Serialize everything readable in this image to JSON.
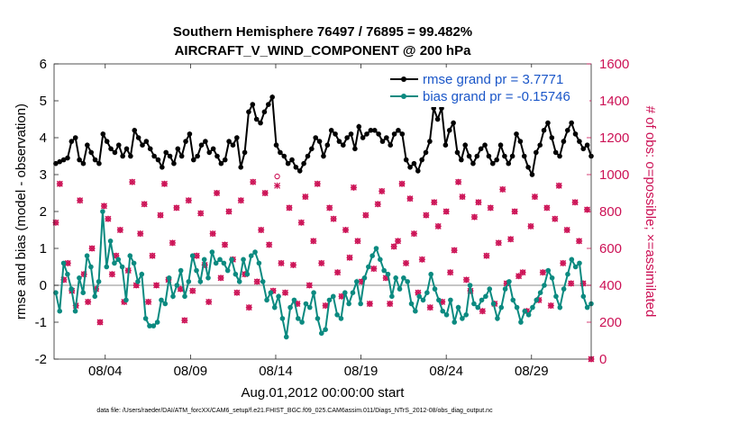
{
  "chart_data": {
    "type": "line",
    "title": "Southern Hemisphere 76497 / 76895 = 99.482%",
    "subtitle": "AIRCRAFT_V_WIND_COMPONENT @ 200 hPa",
    "xlabel": "Aug.01,2012 00:00:00 start",
    "ylabel": "rmse and bias (model - observation)",
    "ylabel_right": "# of obs: o=possible; ×=assimilated",
    "xlim": [
      0,
      31.5
    ],
    "ylim": [
      -2,
      6
    ],
    "ylim_right": [
      0,
      1600
    ],
    "grid": false,
    "legend_position": "top-right",
    "x_ticks": [
      {
        "x": 3,
        "label": "08/04"
      },
      {
        "x": 8,
        "label": "08/09"
      },
      {
        "x": 13,
        "label": "08/14"
      },
      {
        "x": 18,
        "label": "08/19"
      },
      {
        "x": 23,
        "label": "08/24"
      },
      {
        "x": 28,
        "label": "08/29"
      }
    ],
    "y_ticks": [
      -2,
      -1,
      0,
      1,
      2,
      3,
      4,
      5,
      6
    ],
    "y_ticks_right": [
      0,
      200,
      400,
      600,
      800,
      1000,
      1200,
      1400,
      1600
    ],
    "series": [
      {
        "name": "rmse grand pr = 3.7771",
        "color": "#000000",
        "axis": "left",
        "marker": "circle",
        "values": [
          3.3,
          3.35,
          3.4,
          3.45,
          3.9,
          4.0,
          3.4,
          3.3,
          3.8,
          3.6,
          3.4,
          3.3,
          4.1,
          3.9,
          3.7,
          3.6,
          3.8,
          3.5,
          3.7,
          3.5,
          4.2,
          4.0,
          3.8,
          3.9,
          3.7,
          3.5,
          3.4,
          3.2,
          3.6,
          3.5,
          3.3,
          3.7,
          3.5,
          3.9,
          4.1,
          3.4,
          3.5,
          3.8,
          3.9,
          3.6,
          3.7,
          3.5,
          3.3,
          3.4,
          3.9,
          3.8,
          4.0,
          3.2,
          3.6,
          4.7,
          4.9,
          4.5,
          4.4,
          4.7,
          4.9,
          5.1,
          3.8,
          3.6,
          3.5,
          3.3,
          3.4,
          3.2,
          3.1,
          3.3,
          3.5,
          3.7,
          4.0,
          3.9,
          3.5,
          3.8,
          4.2,
          4.1,
          3.9,
          3.8,
          4.0,
          4.1,
          3.7,
          4.3,
          4.0,
          4.1,
          4.2,
          4.2,
          4.1,
          3.9,
          4.0,
          3.8,
          4.1,
          4.2,
          4.1,
          3.4,
          3.2,
          3.3,
          3.1,
          3.4,
          3.6,
          3.9,
          4.8,
          4.5,
          4.8,
          3.8,
          4.2,
          4.4,
          3.6,
          3.4,
          3.8,
          3.5,
          3.3,
          3.5,
          3.7,
          3.8,
          3.5,
          3.3,
          3.4,
          3.8,
          3.5,
          3.3,
          3.5,
          4.1,
          3.9,
          3.5,
          3.2,
          3.0,
          3.6,
          3.8,
          4.2,
          4.4,
          4.0,
          3.6,
          3.5,
          3.9,
          4.2,
          4.4,
          4.1,
          3.9,
          3.7,
          3.8,
          3.5
        ]
      },
      {
        "name": "bias grand pr = -0.15746",
        "color": "#0b8a80",
        "axis": "left",
        "marker": "circle",
        "values": [
          -0.2,
          -0.7,
          0.6,
          0.3,
          -0.1,
          -0.7,
          0.2,
          -0.2,
          0.8,
          0.5,
          -0.3,
          0.1,
          2.0,
          0.5,
          1.2,
          0.6,
          0.7,
          0.5,
          -0.4,
          0.8,
          0.6,
          0.1,
          0.3,
          -0.9,
          -1.1,
          -1.1,
          -1.0,
          -0.4,
          -0.5,
          0.2,
          -0.3,
          0.0,
          0.4,
          -0.3,
          0.1,
          0.8,
          0.4,
          0.1,
          0.7,
          0.2,
          0.9,
          0.6,
          0.7,
          0.6,
          0.4,
          0.7,
          0.3,
          0.1,
          0.7,
          0.3,
          0.8,
          0.9,
          0.6,
          0.1,
          -0.4,
          -0.2,
          -0.6,
          -0.3,
          -0.9,
          -1.4,
          -0.6,
          -0.4,
          -0.9,
          -1.0,
          -0.5,
          -0.6,
          -0.2,
          -0.9,
          -1.3,
          -1.2,
          -0.4,
          -0.3,
          -0.8,
          -0.9,
          -0.2,
          -0.5,
          -0.2,
          0.1,
          -0.5,
          0.2,
          0.5,
          0.8,
          1.0,
          0.7,
          0.4,
          0.3,
          -0.3,
          0.2,
          -0.1,
          0.2,
          0.1,
          -0.5,
          -0.7,
          -0.3,
          -0.4,
          -0.2,
          0.3,
          -0.1,
          -0.4,
          -0.7,
          -0.8,
          -0.4,
          -1.0,
          -0.6,
          -0.9,
          -0.8,
          0.0,
          -0.5,
          -0.6,
          -0.4,
          -0.3,
          -0.1,
          -0.5,
          -0.9,
          -0.6,
          -0.1,
          0.1,
          -0.4,
          -0.6,
          -1.0,
          -0.7,
          -0.8,
          -0.6,
          -0.4,
          -0.2,
          0.0,
          0.4,
          0.2,
          -0.3,
          -0.6,
          -0.1,
          0.3,
          0.7,
          0.5,
          0.6,
          -0.3,
          -0.6,
          -0.5
        ]
      },
      {
        "name": "# of obs possible",
        "color": "#cc1155",
        "axis": "right",
        "marker": "open-circle",
        "values": [
          740,
          950,
          430,
          520,
          370,
          290,
          860,
          460,
          310,
          600,
          380,
          200,
          830,
          760,
          460,
          560,
          700,
          310,
          480,
          960,
          400,
          680,
          840,
          310,
          560,
          400,
          780,
          950,
          430,
          630,
          820,
          380,
          210,
          860,
          370,
          560,
          790,
          510,
          310,
          680,
          900,
          440,
          620,
          800,
          540,
          360,
          860,
          460,
          280,
          960,
          420,
          700,
          900,
          620,
          370,
          990,
          520,
          360,
          820,
          510,
          300,
          740,
          880,
          400,
          640,
          950,
          520,
          290,
          820,
          760,
          470,
          340,
          700,
          550,
          930,
          640,
          420,
          780,
          300,
          490,
          840,
          910,
          440,
          300,
          610,
          640,
          950,
          520,
          870,
          680,
          360,
          540,
          780,
          280,
          850,
          720,
          310,
          800,
          470,
          590,
          960,
          880,
          430,
          370,
          770,
          850,
          260,
          560,
          820,
          300,
          630,
          920,
          410,
          650,
          800,
          450,
          470,
          260,
          720,
          880,
          320,
          470,
          820,
          290,
          760,
          940,
          520,
          700,
          410,
          850,
          640,
          410,
          810,
          0
        ]
      },
      {
        "name": "# of obs assimilated",
        "color": "#cc1155",
        "axis": "right",
        "marker": "x",
        "values": [
          740,
          950,
          430,
          520,
          370,
          290,
          860,
          460,
          310,
          600,
          380,
          200,
          830,
          760,
          460,
          560,
          700,
          310,
          480,
          960,
          400,
          680,
          840,
          310,
          560,
          400,
          780,
          950,
          430,
          630,
          820,
          380,
          210,
          860,
          370,
          560,
          790,
          510,
          310,
          680,
          900,
          440,
          620,
          800,
          540,
          360,
          860,
          460,
          280,
          960,
          420,
          700,
          900,
          620,
          370,
          940,
          520,
          360,
          820,
          510,
          300,
          740,
          880,
          400,
          640,
          950,
          520,
          290,
          820,
          760,
          470,
          340,
          700,
          550,
          930,
          640,
          420,
          780,
          300,
          490,
          840,
          910,
          440,
          300,
          610,
          640,
          950,
          520,
          870,
          680,
          360,
          540,
          780,
          280,
          850,
          720,
          310,
          800,
          470,
          590,
          960,
          880,
          430,
          370,
          770,
          850,
          260,
          560,
          820,
          300,
          630,
          920,
          410,
          650,
          800,
          450,
          470,
          260,
          720,
          880,
          320,
          470,
          820,
          290,
          760,
          940,
          520,
          700,
          410,
          850,
          640,
          410,
          810,
          0
        ]
      }
    ],
    "legend": [
      {
        "label": "rmse grand pr = 3.7771",
        "color": "#000000"
      },
      {
        "label": "bias grand pr = -0.15746",
        "color": "#0b8a80"
      }
    ],
    "footer": "data file: /Users/raeder/DAI/ATM_forcXX/CAM6_setup/f.e21.FHIST_BGC.f09_025.CAM6assim.011/Diags_NTrS_2012-08/obs_diag_output.nc"
  }
}
